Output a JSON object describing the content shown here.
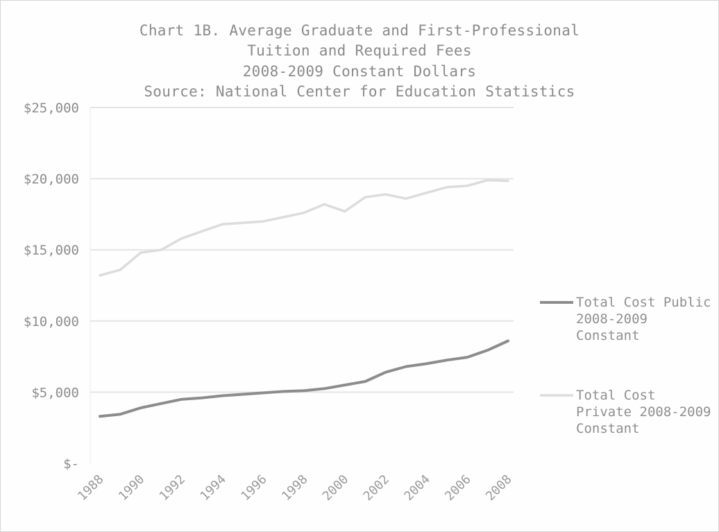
{
  "chart_data": {
    "type": "line",
    "title_lines": [
      "Chart 1B. Average Graduate and First-Professional",
      "Tuition and Required Fees",
      "2008-2009 Constant Dollars",
      "Source: National Center for Education Statistics"
    ],
    "x": [
      1988,
      1989,
      1990,
      1991,
      1992,
      1993,
      1994,
      1995,
      1996,
      1997,
      1998,
      1999,
      2000,
      2001,
      2002,
      2003,
      2004,
      2005,
      2006,
      2007,
      2008
    ],
    "x_tick_labels": [
      "1988",
      "1990",
      "1992",
      "1994",
      "1996",
      "1998",
      "2000",
      "2002",
      "2004",
      "2006",
      "2008"
    ],
    "y_tick_labels": [
      "$-",
      "$5,000",
      "$10,000",
      "$15,000",
      "$20,000",
      "$25,000"
    ],
    "y_ticks": [
      0,
      5000,
      10000,
      15000,
      20000,
      25000
    ],
    "ylim": [
      0,
      25000
    ],
    "grid": true,
    "legend_position": "right",
    "series": [
      {
        "name": "Total Cost Public 2008-2009 Constant",
        "color": "#8c8c8c",
        "values": [
          3300,
          3450,
          3900,
          4200,
          4500,
          4600,
          4750,
          4850,
          4950,
          5050,
          5100,
          5250,
          5500,
          5750,
          6400,
          6800,
          7000,
          7250,
          7450,
          7950,
          8600
        ]
      },
      {
        "name": "Total Cost Private 2008-2009 Constant",
        "color": "#dcdcdc",
        "values": [
          13200,
          13600,
          14800,
          15000,
          15800,
          16300,
          16800,
          16900,
          17000,
          17300,
          17600,
          18200,
          17700,
          18700,
          18900,
          18600,
          19000,
          19400,
          19500,
          19900,
          19850
        ]
      }
    ]
  }
}
